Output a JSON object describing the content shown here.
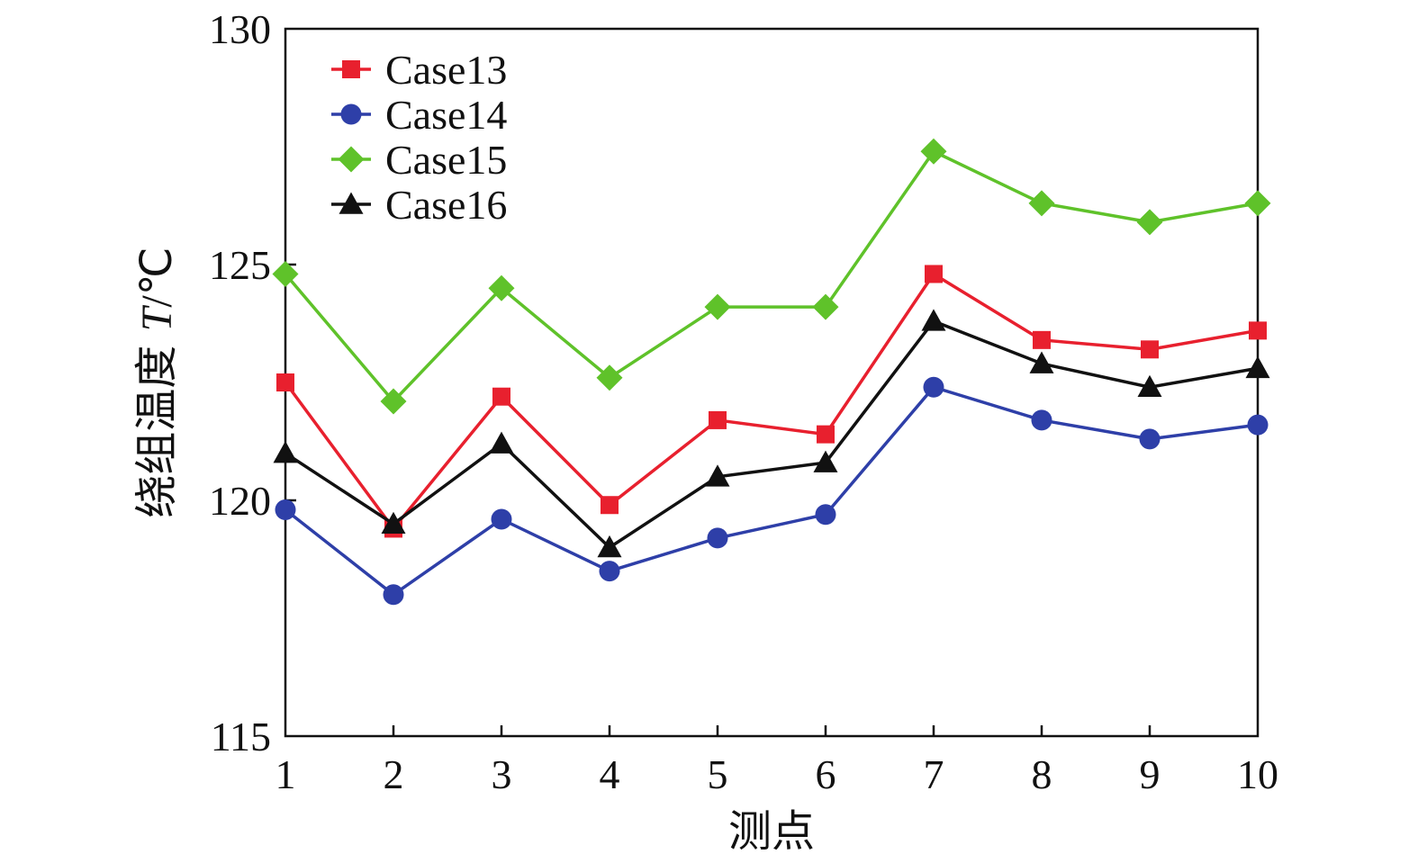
{
  "chart_data": {
    "type": "line",
    "title": "",
    "xlabel": "测点",
    "ylabel": "绕组温度 T/℃",
    "ylabel_parts": {
      "text": "绕组温度 ",
      "italic": "T",
      "unit": "/℃"
    },
    "x": [
      1,
      2,
      3,
      4,
      5,
      6,
      7,
      8,
      9,
      10
    ],
    "xlim": [
      1,
      10
    ],
    "ylim": [
      115,
      130
    ],
    "yticks": [
      115,
      120,
      125,
      130
    ],
    "grid": false,
    "legend_position": "top-left",
    "series": [
      {
        "name": "Case13",
        "color": "#e8202e",
        "marker": "square",
        "values": [
          122.5,
          119.4,
          122.2,
          119.9,
          121.7,
          121.4,
          124.8,
          123.4,
          123.2,
          123.6
        ]
      },
      {
        "name": "Case14",
        "color": "#2e3fa8",
        "marker": "circle",
        "values": [
          119.8,
          118.0,
          119.6,
          118.5,
          119.2,
          119.7,
          122.4,
          121.7,
          121.3,
          121.6
        ]
      },
      {
        "name": "Case15",
        "color": "#5fc22a",
        "marker": "diamond",
        "values": [
          124.8,
          122.1,
          124.5,
          122.6,
          124.1,
          124.1,
          127.4,
          126.3,
          125.9,
          126.3
        ]
      },
      {
        "name": "Case16",
        "color": "#111111",
        "marker": "triangle",
        "values": [
          121.0,
          119.5,
          121.2,
          119.0,
          120.5,
          120.8,
          123.8,
          122.9,
          122.4,
          122.8
        ]
      }
    ]
  }
}
